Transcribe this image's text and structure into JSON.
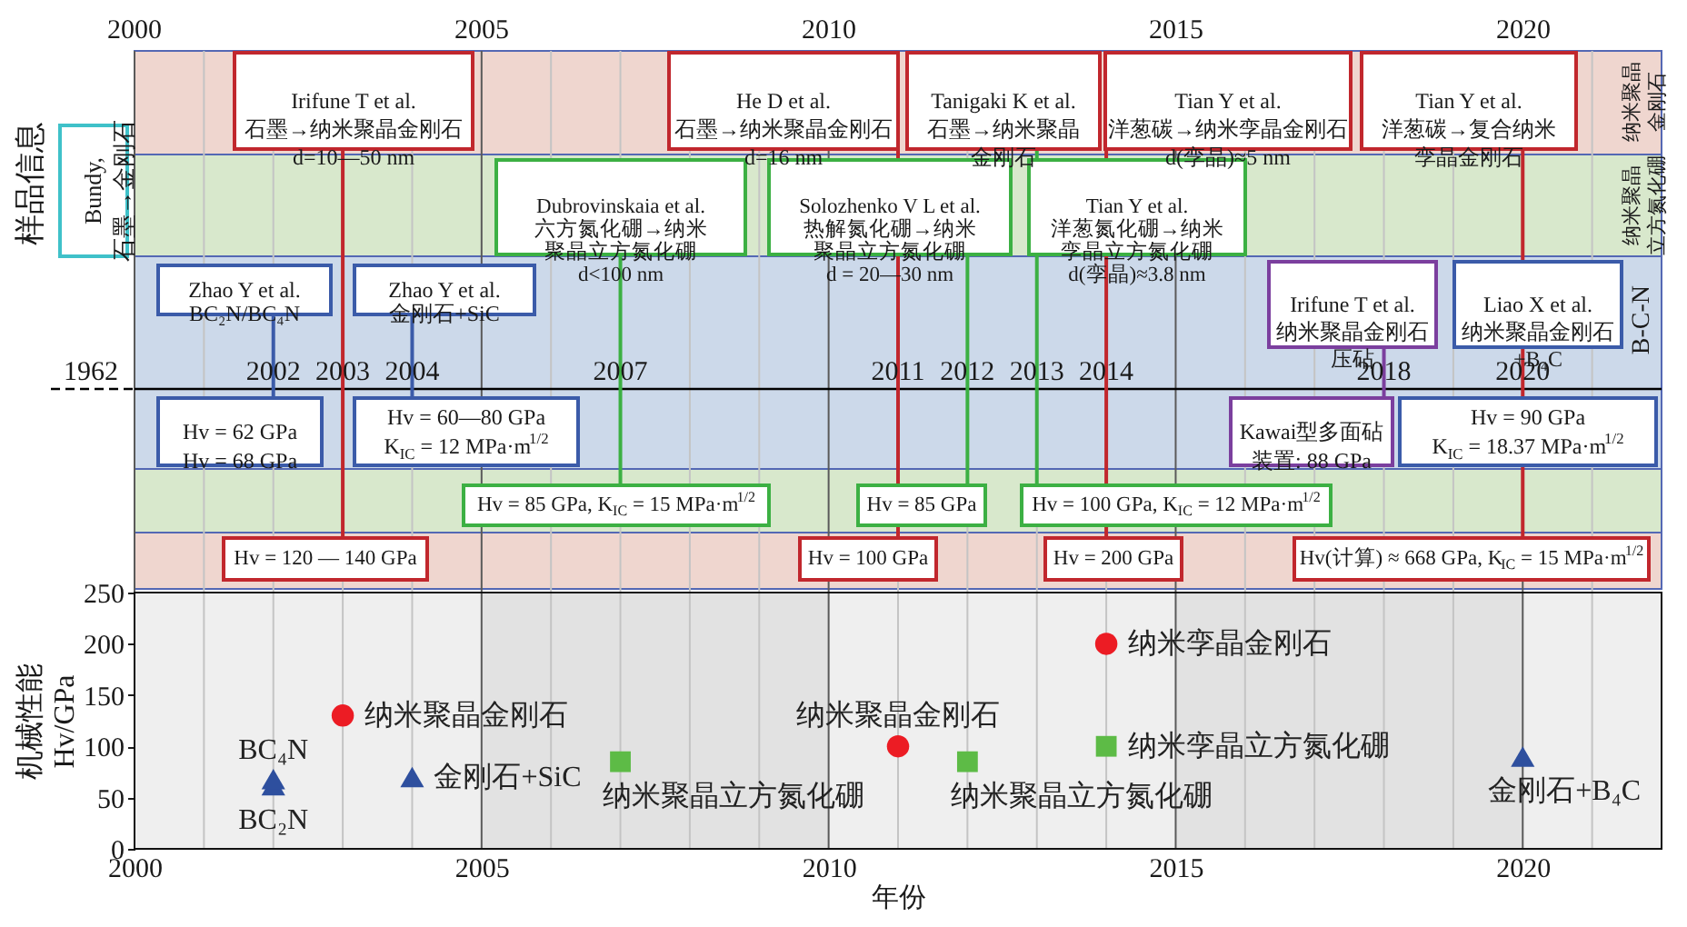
{
  "chart_data": {
    "type": "scatter",
    "xlabel": "年份",
    "ylabel": "机械性能\nHv/GPa",
    "xlim": [
      2000,
      2022
    ],
    "xticks": [
      2000,
      {
        "value": 2001,
        "label": null
      },
      {
        "value": 2002,
        "label": null
      },
      {
        "value": 2003,
        "label": null
      },
      {
        "value": 2004,
        "label": null
      },
      2005,
      {
        "value": 2006,
        "label": null
      },
      {
        "value": 2007,
        "label": null
      },
      {
        "value": 2008,
        "label": null
      },
      {
        "value": 2009,
        "label": null
      },
      2010,
      {
        "value": 2011,
        "label": null
      },
      {
        "value": 2012,
        "label": null
      },
      {
        "value": 2013,
        "label": null
      },
      {
        "value": 2014,
        "label": null
      },
      2015,
      {
        "value": 2016,
        "label": null
      },
      {
        "value": 2017,
        "label": null
      },
      {
        "value": 2018,
        "label": null
      },
      {
        "value": 2019,
        "label": null
      },
      2020,
      {
        "value": 2021,
        "label": null
      }
    ],
    "ylim": [
      0,
      250
    ],
    "yticks": [
      0,
      50,
      100,
      150,
      200,
      250
    ],
    "grid": "x",
    "bands": [
      {
        "axis": "x",
        "from": 2005,
        "to": 2010,
        "color": "#e2e2e2"
      },
      {
        "axis": "x",
        "from": 2015,
        "to": 2020,
        "color": "#e2e2e2"
      }
    ],
    "ref_lines": [
      {
        "axis": "x",
        "value": 2002,
        "label": "2002",
        "color": "#3b5ba9"
      },
      {
        "axis": "x",
        "value": 2003,
        "label": "2003",
        "color": "#c1272d"
      },
      {
        "axis": "x",
        "value": 2004,
        "label": "2004",
        "color": "#3b5ba9"
      },
      {
        "axis": "x",
        "value": 2007,
        "label": "2007",
        "color": "#3cb043"
      },
      {
        "axis": "x",
        "value": 2011,
        "label": "2011",
        "color": "#c1272d"
      },
      {
        "axis": "x",
        "value": 2012,
        "label": "2012",
        "color": "#3cb043"
      },
      {
        "axis": "x",
        "value": 2013,
        "label": "2013",
        "color": "#3cb043"
      },
      {
        "axis": "x",
        "value": 2014,
        "label": "2014",
        "color": "#c1272d"
      },
      {
        "axis": "x",
        "value": 2018,
        "label": "2018",
        "color": "#7b3f9e"
      },
      {
        "axis": "x",
        "value": 2020,
        "label": "2020",
        "color": "#c1272d"
      }
    ],
    "series": [
      {
        "color": "#ec1c24",
        "marker": "circle",
        "x": [
          2003,
          2011,
          2014
        ],
        "values": [
          130,
          100,
          200
        ]
      },
      {
        "color": "#5dbb46",
        "marker": "square",
        "x": [
          2007,
          2012,
          2014
        ],
        "values": [
          85,
          85,
          100
        ]
      },
      {
        "color": "#2e4f9e",
        "marker": "triangle",
        "x": [
          2002,
          2002,
          2004,
          2020
        ],
        "values": [
          62,
          68,
          70,
          90
        ]
      }
    ],
    "annotations": [
      {
        "text": "纳米聚晶金刚石",
        "x": 2003,
        "y": 130
      },
      {
        "text": "纳米聚晶金刚石",
        "x": 2011,
        "y": 100
      },
      {
        "text": "纳米孪晶金刚石",
        "x": 2014,
        "y": 200
      },
      {
        "text": "纳米聚晶立方氮化硼",
        "x": 2007,
        "y": 85
      },
      {
        "text": "纳米聚晶立方氮化硼",
        "x": 2012,
        "y": 85
      },
      {
        "text": "纳米孪晶立方氮化硼",
        "x": 2014,
        "y": 100
      },
      {
        "text": "BC₂N",
        "x": 2002,
        "y": 62
      },
      {
        "text": "BC₄N",
        "x": 2002,
        "y": 68
      },
      {
        "text": "金刚石+SiC",
        "x": 2004,
        "y": 70
      },
      {
        "text": "金刚石+B₄C",
        "x": 2020,
        "y": 90
      },
      "Irifune T et al.\n石墨→纳米聚晶金刚石\nd=10—50 nm",
      "He D et al.\n石墨→纳米聚晶金刚石\nd=16 nm",
      "Tanigaki K et al.\n石墨→纳米聚晶金刚石",
      "Tian Y et al.\n洋葱碳→纳米孪晶金刚石\nd(孪晶)≈5 nm",
      "Tian Y et al.\n洋葱碳→复合纳米孪晶金刚石",
      "Dubrovinskaia et al.\n六方氮化硼→纳米聚晶立方氮化硼\nd<100 nm",
      "Solozhenko V L et al.\n热解氮化硼→纳米聚晶立方氮化硼\nd = 20—30 nm",
      "Tian Y et al.\n洋葱氮化硼→纳米孪晶立方氮化硼\nd(孪晶)≈3.8 nm",
      "Zhao Y et al.\nBC₂N/BC₄N",
      "Zhao Y et al.\n金刚石+SiC",
      "Irifune T et al.\n纳米聚晶金刚石压砧",
      "Liao X et al.\n纳米聚晶金刚石+B₄C",
      "Hv = 62 GPa\nHv = 68 GPa",
      "Hv = 60—80 GPa\nK$_{IC}$ = 12 MPa·m$^{1/2}$",
      "Kawai型多面砧装置: 88 GPa",
      "Hv = 90 GPa\nK$_{IC}$ = 18.37 MPa·m$^{1/2}$",
      "Hv = 85 GPa, K$_{IC}$ = 15 MPa·m$^{1/2}$",
      "Hv = 85 GPa",
      "Hv = 100 GPa, K$_{IC}$ = 12 MPa·m$^{1/2}$",
      "Hv = 120 — 140 GPa",
      "Hv = 100 GPa",
      "Hv = 200 GPa",
      "Hv(计算) ≈ 668 GPa, K$_{IC}$ = 15 MPa·m$^{1/2}$",
      "纳米聚晶金刚石",
      "纳米聚晶立方氮化硼",
      "B-C-N",
      "Bundy,\n石墨→金刚石",
      "1962",
      "样品信息",
      "2000",
      "2005",
      "2010",
      "2015",
      "2020"
    ]
  }
}
